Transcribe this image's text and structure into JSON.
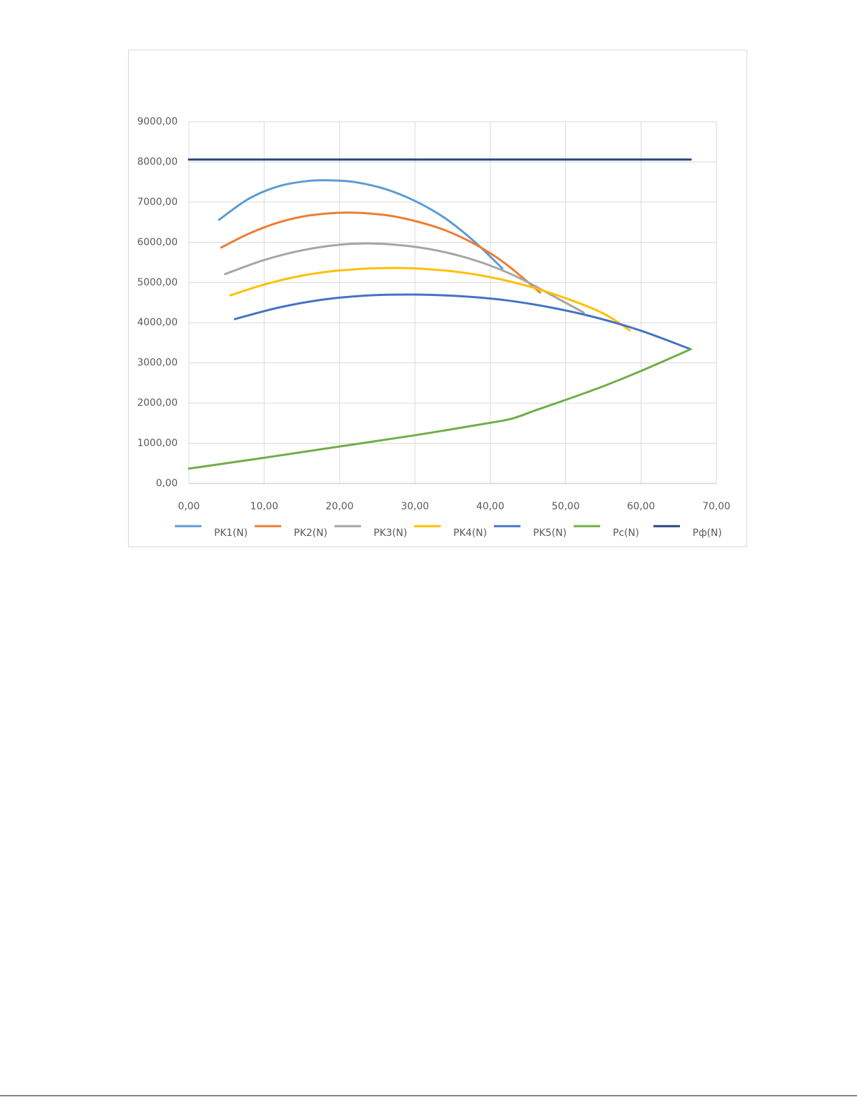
{
  "chart_data": {
    "type": "line",
    "xlim": [
      0,
      70
    ],
    "xticks": [
      {
        "value": 0,
        "label": "0,00"
      },
      {
        "value": 10,
        "label": "10,00"
      },
      {
        "value": 20,
        "label": "20,00"
      },
      {
        "value": 30,
        "label": "30,00"
      },
      {
        "value": 40,
        "label": "40,00"
      },
      {
        "value": 50,
        "label": "50,00"
      },
      {
        "value": 60,
        "label": "60,00"
      },
      {
        "value": 70,
        "label": "70,00"
      }
    ],
    "ylim": [
      0,
      9000
    ],
    "yticks": [
      {
        "value": 0,
        "label": "0,00"
      },
      {
        "value": 1000,
        "label": "1000,00"
      },
      {
        "value": 2000,
        "label": "2000,00"
      },
      {
        "value": 3000,
        "label": "3000,00"
      },
      {
        "value": 4000,
        "label": "4000,00"
      },
      {
        "value": 5000,
        "label": "5000,00"
      },
      {
        "value": 6000,
        "label": "6000,00"
      },
      {
        "value": 7000,
        "label": "7000,00"
      },
      {
        "value": 8000,
        "label": "8000,00"
      },
      {
        "value": 9000,
        "label": "9000,00"
      }
    ],
    "grid": true,
    "legend": "bottom",
    "series": [
      {
        "name": "PK1(N)",
        "color": "#5b9bd5",
        "x": [
          4.0,
          8,
          12,
          16,
          19,
          22,
          26,
          30,
          34,
          38,
          41.6
        ],
        "values": [
          6560,
          7090,
          7400,
          7530,
          7540,
          7500,
          7330,
          7030,
          6600,
          6000,
          5350
        ]
      },
      {
        "name": "PK2(N)",
        "color": "#ed7d31",
        "x": [
          4.3,
          8,
          12,
          16,
          21,
          26,
          30,
          34,
          38,
          42,
          46.6
        ],
        "values": [
          5870,
          6220,
          6500,
          6670,
          6740,
          6680,
          6530,
          6300,
          5950,
          5470,
          4750
        ]
      },
      {
        "name": "PK3(N)",
        "color": "#a5a5a5",
        "x": [
          4.8,
          10,
          15,
          20,
          24,
          28,
          32,
          36,
          40,
          44,
          48,
          52.4
        ],
        "values": [
          5210,
          5560,
          5800,
          5940,
          5970,
          5930,
          5830,
          5660,
          5420,
          5100,
          4700,
          4250
        ]
      },
      {
        "name": "PK4(N)",
        "color": "#ffc000",
        "x": [
          5.5,
          10,
          15,
          20,
          26,
          32,
          38,
          44,
          50,
          55,
          58.5
        ],
        "values": [
          4680,
          4950,
          5170,
          5300,
          5360,
          5330,
          5200,
          4960,
          4610,
          4230,
          3810
        ]
      },
      {
        "name": "PK5(N)",
        "color": "#4472c4",
        "x": [
          6.1,
          12,
          18,
          24,
          30,
          36,
          42,
          48,
          54,
          60,
          66.6
        ],
        "values": [
          4090,
          4380,
          4580,
          4680,
          4700,
          4660,
          4560,
          4380,
          4130,
          3800,
          3340
        ]
      },
      {
        "name": "Pc(N)",
        "color": "#70ad47",
        "x": [
          0,
          10,
          20,
          30,
          40,
          43,
          46,
          50,
          55,
          60,
          66.6
        ],
        "values": [
          370,
          640,
          920,
          1200,
          1510,
          1620,
          1820,
          2080,
          2420,
          2800,
          3340
        ]
      },
      {
        "name": "Pф(N)",
        "color": "#264478",
        "x": [
          0,
          66.6
        ],
        "values": [
          8060,
          8060
        ]
      }
    ]
  }
}
